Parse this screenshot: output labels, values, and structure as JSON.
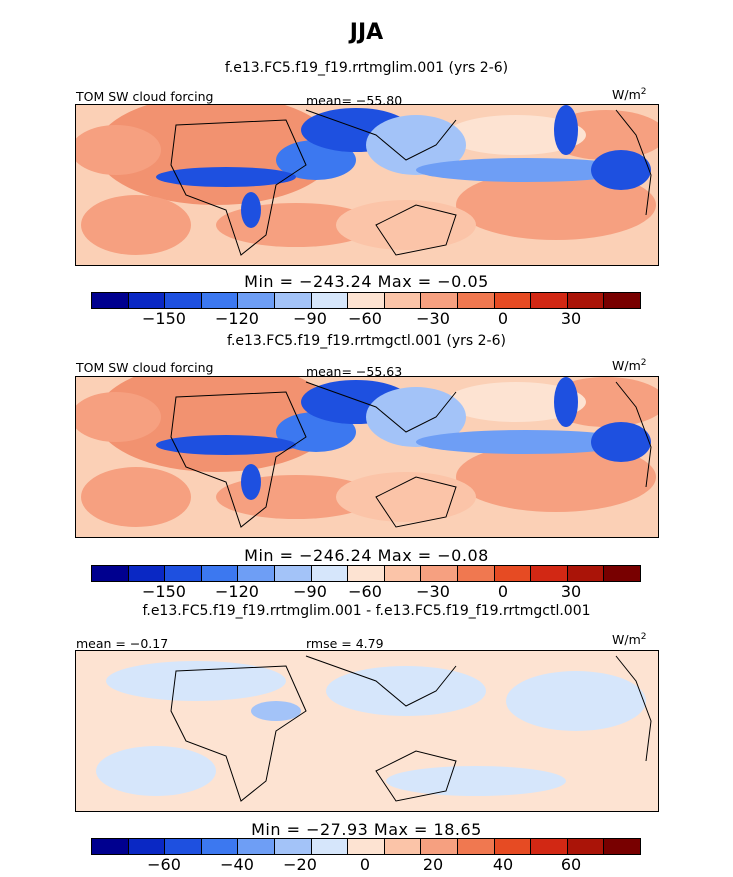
{
  "figure": {
    "title": "JJA"
  },
  "colors": {
    "levels": [
      "#00008f",
      "#0a28c4",
      "#1e50e0",
      "#3c78f0",
      "#6e9ef5",
      "#a3c3f8",
      "#d6e6fb",
      "#fde3d2",
      "#fbc4a8",
      "#f6a080",
      "#f07850",
      "#e64b23",
      "#d22814",
      "#aa1408",
      "#780000"
    ],
    "land": "#f29270",
    "coast": "#000000"
  },
  "panels": [
    {
      "title": "f.e13.FC5.f19_f19.rrtmglim.001 (yrs 2-6)",
      "left_label": "TOM SW cloud forcing",
      "center_label": "mean= −55.80",
      "units": "W/m",
      "units_sup": "2",
      "min_max": "Min = −243.24 Max = −0.05",
      "colorbar_ticks": [
        "−150",
        "−120",
        "−90",
        "−60",
        "−30",
        "0",
        "30"
      ]
    },
    {
      "title": "f.e13.FC5.f19_f19.rrtmgctl.001 (yrs 2-6)",
      "left_label": "TOM SW cloud forcing",
      "center_label": "mean= −55.63",
      "units": "W/m",
      "units_sup": "2",
      "min_max": "Min = −246.24 Max = −0.08",
      "colorbar_ticks": [
        "−150",
        "−120",
        "−90",
        "−60",
        "−30",
        "0",
        "30"
      ]
    },
    {
      "title": "f.e13.FC5.f19_f19.rrtmglim.001 - f.e13.FC5.f19_f19.rrtmgctl.001",
      "left_label": "mean = −0.17",
      "center_label": "rmse = 4.79",
      "units": "W/m",
      "units_sup": "2",
      "min_max": "Min = −27.93 Max = 18.65",
      "colorbar_ticks": [
        "−60",
        "−40",
        "−20",
        "0",
        "20",
        "40",
        "60"
      ]
    }
  ]
}
